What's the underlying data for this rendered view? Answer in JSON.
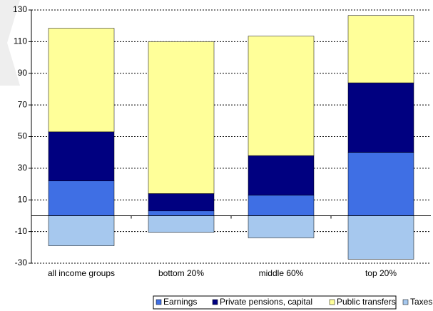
{
  "chart_data": {
    "type": "stacked_bar",
    "categories": [
      "all income groups",
      "bottom 20%",
      "middle 60%",
      "top 20%"
    ],
    "series": [
      {
        "name": "Earnings",
        "color": "#3f6fe4",
        "values": [
          22,
          3,
          13,
          40
        ]
      },
      {
        "name": "Private pensions, capital",
        "color": "#000080",
        "values": [
          31,
          11,
          25,
          44
        ]
      },
      {
        "name": "Public transfers",
        "color": "#ffff99",
        "values": [
          65.5,
          96,
          75.5,
          42.5
        ]
      },
      {
        "name": "Taxes",
        "color": "#a6c8ee",
        "values": [
          -19,
          -10.5,
          -14,
          -27.5
        ]
      }
    ],
    "ylim": [
      -30,
      130
    ],
    "yticks": [
      -30,
      -10,
      10,
      30,
      50,
      70,
      90,
      110,
      130
    ],
    "grid": true
  }
}
